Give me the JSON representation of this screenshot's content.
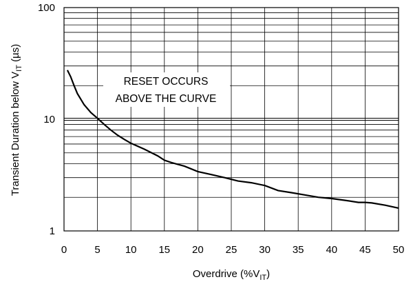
{
  "chart_data": {
    "type": "line",
    "title": "",
    "xlabel": {
      "main": "Overdrive (%V",
      "sub": "IT",
      "tail": ")"
    },
    "ylabel": {
      "main": "Transient Duration below V",
      "sub": "IT",
      "tail": " (µs)"
    },
    "xlim": [
      0,
      50
    ],
    "ylim": [
      1,
      100
    ],
    "yscale": "log",
    "grid": true,
    "x_ticks": [
      0,
      5,
      10,
      15,
      20,
      25,
      30,
      35,
      40,
      45,
      50
    ],
    "x_tick_labels": [
      "0",
      "5",
      "10",
      "15",
      "20",
      "25",
      "30",
      "35",
      "40",
      "45",
      "50"
    ],
    "y_ticks": [
      1,
      10,
      100
    ],
    "y_tick_labels": [
      "1",
      "10",
      "100"
    ],
    "annotation": [
      "RESET OCCURS",
      "ABOVE THE CURVE"
    ],
    "series": [
      {
        "x": [
          0.5,
          1,
          1.5,
          2,
          3,
          4,
          5,
          6,
          7,
          8,
          9,
          10,
          12,
          14,
          15,
          16,
          18,
          20,
          22,
          24,
          26,
          28,
          30,
          32,
          34,
          36,
          38,
          40,
          42,
          44,
          45,
          46,
          48,
          50
        ],
        "values": [
          27.5,
          24,
          20,
          17,
          13.5,
          11.5,
          10.2,
          9,
          8,
          7.2,
          6.6,
          6.1,
          5.4,
          4.7,
          4.3,
          4.1,
          3.8,
          3.4,
          3.2,
          3.0,
          2.8,
          2.7,
          2.55,
          2.3,
          2.2,
          2.1,
          2.0,
          1.95,
          1.88,
          1.8,
          1.8,
          1.78,
          1.7,
          1.6
        ]
      }
    ]
  }
}
